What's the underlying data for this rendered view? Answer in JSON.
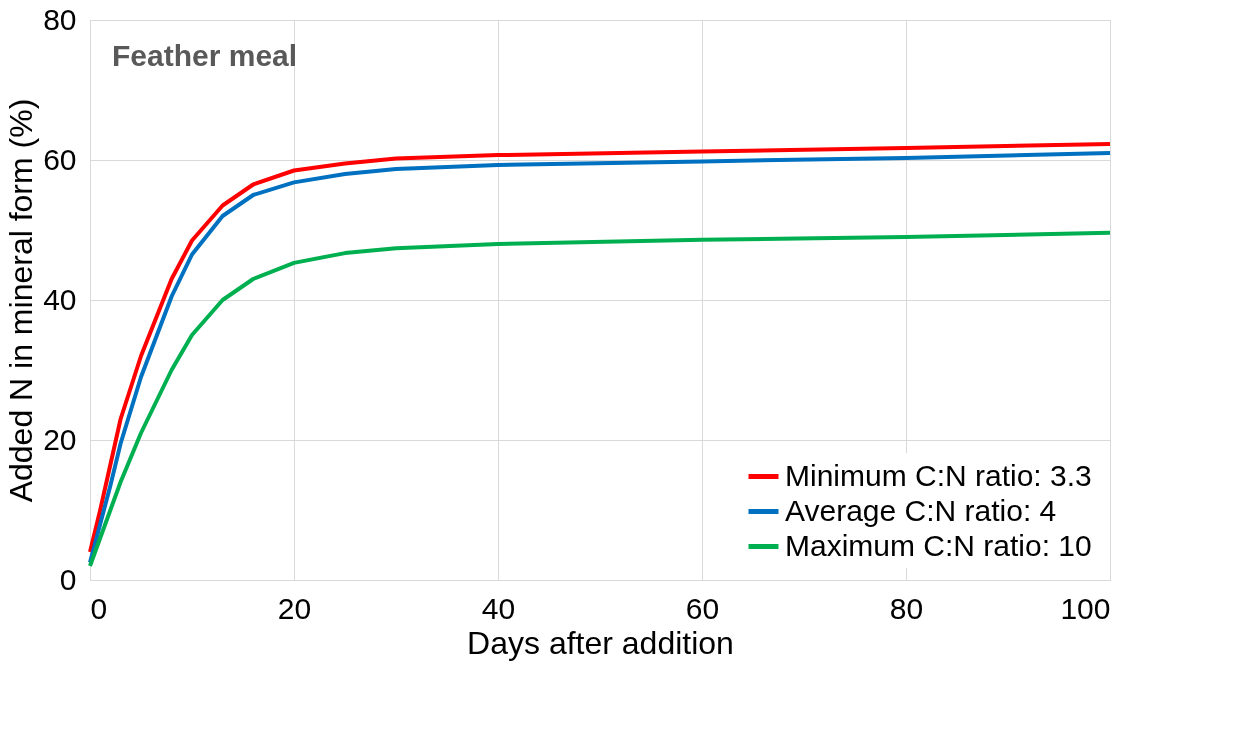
{
  "chart_data": {
    "type": "line",
    "xlabel": "Days after addition",
    "ylabel": "Added N in mineral form (%)",
    "annotations": [
      "Feather meal"
    ],
    "xlim": [
      0,
      100
    ],
    "xticks": [
      0,
      20,
      40,
      60,
      80,
      100
    ],
    "ylim": [
      0,
      80
    ],
    "yticks": [
      0,
      20,
      40,
      60,
      80
    ],
    "grid": true,
    "legend": "bottom right",
    "marker": "none",
    "line_style": "solid",
    "x": [
      0,
      1,
      2,
      3,
      5,
      8,
      10,
      13,
      16,
      20,
      25,
      30,
      40,
      60,
      80,
      100
    ],
    "series": [
      {
        "name": "Minimum C:N ratio: 3.3",
        "color": "#ff0000",
        "values": [
          4,
          10,
          16.5,
          23,
          32,
          43,
          48.5,
          53.5,
          56.5,
          58.5,
          59.5,
          60.2,
          60.7,
          61.2,
          61.7,
          62.3
        ]
      },
      {
        "name": "Average C:N ratio: 4",
        "color": "#0070c0",
        "values": [
          2.5,
          8,
          13.5,
          19.5,
          29,
          40.5,
          46.5,
          52,
          55,
          56.8,
          58,
          58.7,
          59.3,
          59.8,
          60.3,
          61
        ]
      },
      {
        "name": "Maximum C:N ratio: 10",
        "color": "#00b050",
        "values": [
          2,
          6,
          10,
          14,
          21,
          30,
          35,
          40,
          43,
          45.3,
          46.7,
          47.4,
          48,
          48.6,
          49,
          49.6
        ]
      }
    ]
  }
}
